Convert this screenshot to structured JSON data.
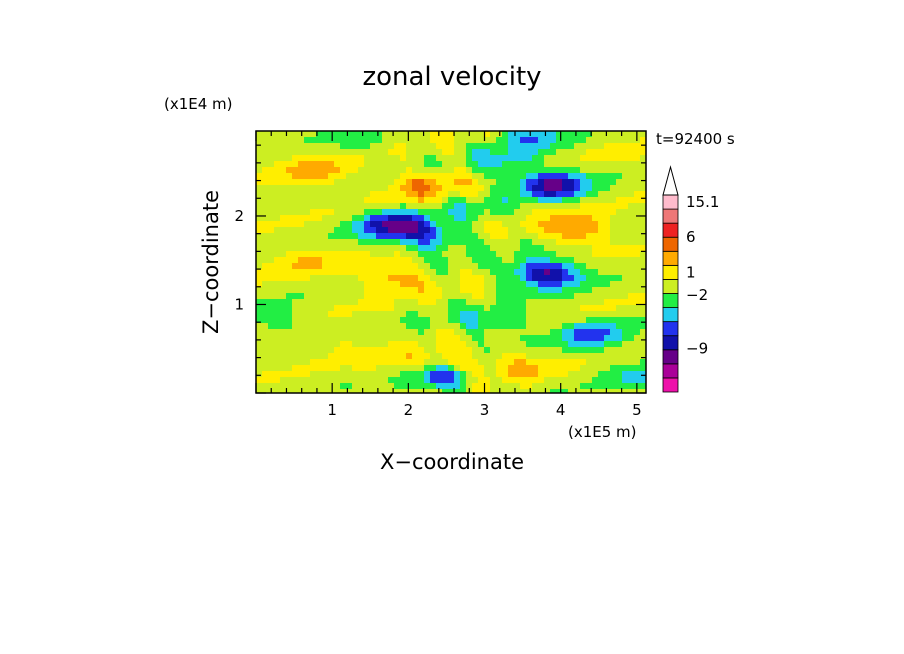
{
  "chart_data": {
    "type": "heatmap",
    "title": "zonal velocity",
    "xlabel": "X−coordinate",
    "ylabel": "Z−coordinate",
    "x_unit": "(x1E5 m)",
    "y_unit": "(x1E4 m)",
    "time_label": "t=92400 s",
    "xlim": [
      0,
      5.12
    ],
    "ylim": [
      0,
      2.96
    ],
    "xticks": [
      1,
      2,
      3,
      4,
      5
    ],
    "yticks": [
      1,
      2
    ],
    "xtick_labels": [
      "1",
      "2",
      "3",
      "4",
      "5"
    ],
    "ytick_labels": [
      "1",
      "2"
    ],
    "colorbar": {
      "bins": [
        {
          "color": "#ee11aa"
        },
        {
          "color": "#aa0099"
        },
        {
          "color": "#660088"
        },
        {
          "color": "#1111aa"
        },
        {
          "color": "#2233ee"
        },
        {
          "color": "#22ccee"
        },
        {
          "color": "#22ee44"
        },
        {
          "color": "#ccee22"
        },
        {
          "color": "#ffee00"
        },
        {
          "color": "#ffaa00"
        },
        {
          "color": "#ee6600"
        },
        {
          "color": "#ee2222"
        },
        {
          "color": "#ee7777"
        },
        {
          "color": "#ffbbcc"
        }
      ],
      "labels": [
        {
          "text": "15.1",
          "bin": 13
        },
        {
          "text": "6",
          "bin": 10.5
        },
        {
          "text": "1",
          "bin": 8
        },
        {
          "text": "−2",
          "bin": 6.4
        },
        {
          "text": "−9",
          "bin": 2.6
        }
      ]
    },
    "features": [
      {
        "x": 2.2,
        "z": 2.35,
        "v": 5
      },
      {
        "x": 0.8,
        "z": 2.5,
        "v": 4
      },
      {
        "x": 1.8,
        "z": 1.9,
        "v": -10
      },
      {
        "x": 2.3,
        "z": 1.75,
        "v": -6
      },
      {
        "x": 3.9,
        "z": 2.35,
        "v": -10
      },
      {
        "x": 3.3,
        "z": 2.6,
        "v": -4
      },
      {
        "x": 4.2,
        "z": 1.85,
        "v": 6
      },
      {
        "x": 3.8,
        "z": 1.35,
        "v": -11
      },
      {
        "x": 4.4,
        "z": 0.65,
        "v": -6
      },
      {
        "x": 1.8,
        "z": 1.3,
        "v": 5
      },
      {
        "x": 0.6,
        "z": 1.5,
        "v": 3
      },
      {
        "x": 0.3,
        "z": 0.8,
        "v": -3
      },
      {
        "x": 1.0,
        "z": 0.6,
        "v": 2
      },
      {
        "x": 2.0,
        "z": 0.3,
        "v": 3
      },
      {
        "x": 2.6,
        "z": 0.3,
        "v": 6
      },
      {
        "x": 2.45,
        "z": 0.2,
        "v": -10
      },
      {
        "x": 3.1,
        "z": 0.8,
        "v": -4
      },
      {
        "x": 3.5,
        "z": 0.3,
        "v": 3
      },
      {
        "x": 4.8,
        "z": 2.7,
        "v": 1
      },
      {
        "x": 5.0,
        "z": 0.2,
        "v": -3
      },
      {
        "x": 2.9,
        "z": 2.1,
        "v": -2
      },
      {
        "x": 3.6,
        "z": 2.9,
        "v": -5
      },
      {
        "x": 1.4,
        "z": 2.85,
        "v": -2
      }
    ]
  }
}
